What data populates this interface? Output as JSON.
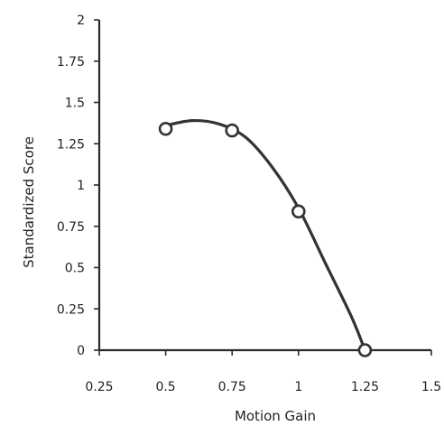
{
  "chart_data": {
    "type": "scatter",
    "title": "",
    "xlabel": "Motion Gain",
    "ylabel": "Standardized Score",
    "xlim": [
      0.25,
      1.5
    ],
    "ylim": [
      0,
      2
    ],
    "xticks": [
      0.25,
      0.5,
      0.75,
      1,
      1.25,
      1.5
    ],
    "xtick_labels": [
      "0.25",
      "0.5",
      "0.75",
      "1",
      "1.25",
      "1.5"
    ],
    "yticks": [
      0,
      0.25,
      0.5,
      0.75,
      1,
      1.25,
      1.5,
      1.75,
      2
    ],
    "ytick_labels": [
      "0",
      "0.25",
      "0.5",
      "0.75",
      "1",
      "1.25",
      "1.5",
      "1.75",
      "2"
    ],
    "grid": false,
    "legend": "none",
    "series": [
      {
        "points": [
          {
            "x": 0.5,
            "y": 1.34
          },
          {
            "x": 0.75,
            "y": 1.33
          },
          {
            "x": 1.0,
            "y": 0.84
          },
          {
            "x": 1.25,
            "y": 0.0
          }
        ],
        "marker": "open-circle",
        "trendline": "polynomial",
        "trend_points": [
          {
            "x": 0.5,
            "y": 1.36
          },
          {
            "x": 0.6,
            "y": 1.39
          },
          {
            "x": 0.7,
            "y": 1.37
          },
          {
            "x": 0.8,
            "y": 1.29
          },
          {
            "x": 0.9,
            "y": 1.11
          },
          {
            "x": 1.0,
            "y": 0.86
          },
          {
            "x": 1.1,
            "y": 0.53
          },
          {
            "x": 1.2,
            "y": 0.2
          },
          {
            "x": 1.25,
            "y": 0.0
          }
        ]
      }
    ],
    "colors": {
      "axis": "#2a2a2a",
      "line": "#333333",
      "marker": "#333333"
    }
  }
}
